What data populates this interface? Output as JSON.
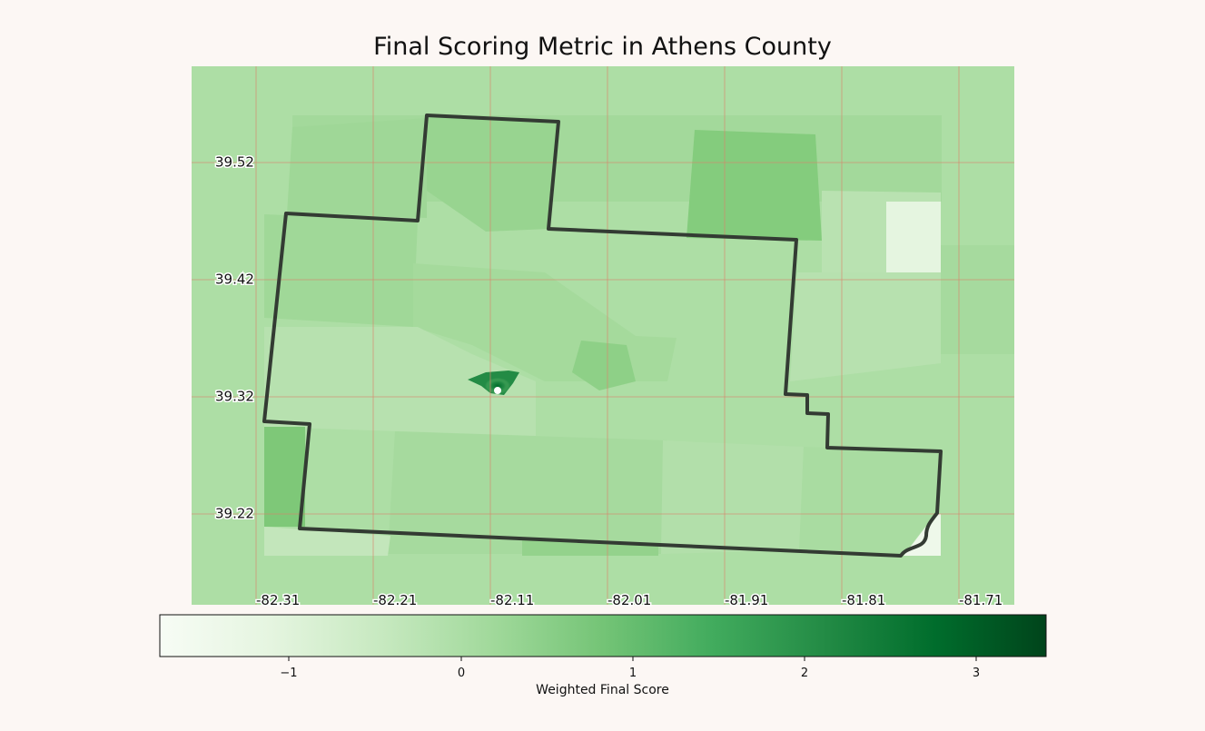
{
  "title": "Final Scoring Metric in Athens County",
  "map": {
    "lat_ticks": [
      "39.52",
      "39.42",
      "39.32",
      "39.22"
    ],
    "lon_ticks": [
      "-82.31",
      "-82.21",
      "-82.11",
      "-82.01",
      "-81.91",
      "-81.81",
      "-81.71"
    ],
    "gridline_color": "#d9836b",
    "county_outline_color": "#333b33"
  },
  "colorbar": {
    "label": "Weighted Final Score",
    "ticks": [
      "−1",
      "0",
      "1",
      "2",
      "3"
    ],
    "range": [
      -1.7,
      3.4
    ],
    "colormap": "Greens",
    "colors": [
      "#f7fcf5",
      "#e5f5e0",
      "#c7e9c0",
      "#a1d99b",
      "#74c476",
      "#41ab5d",
      "#238b45",
      "#006d2c",
      "#00441b"
    ]
  }
}
